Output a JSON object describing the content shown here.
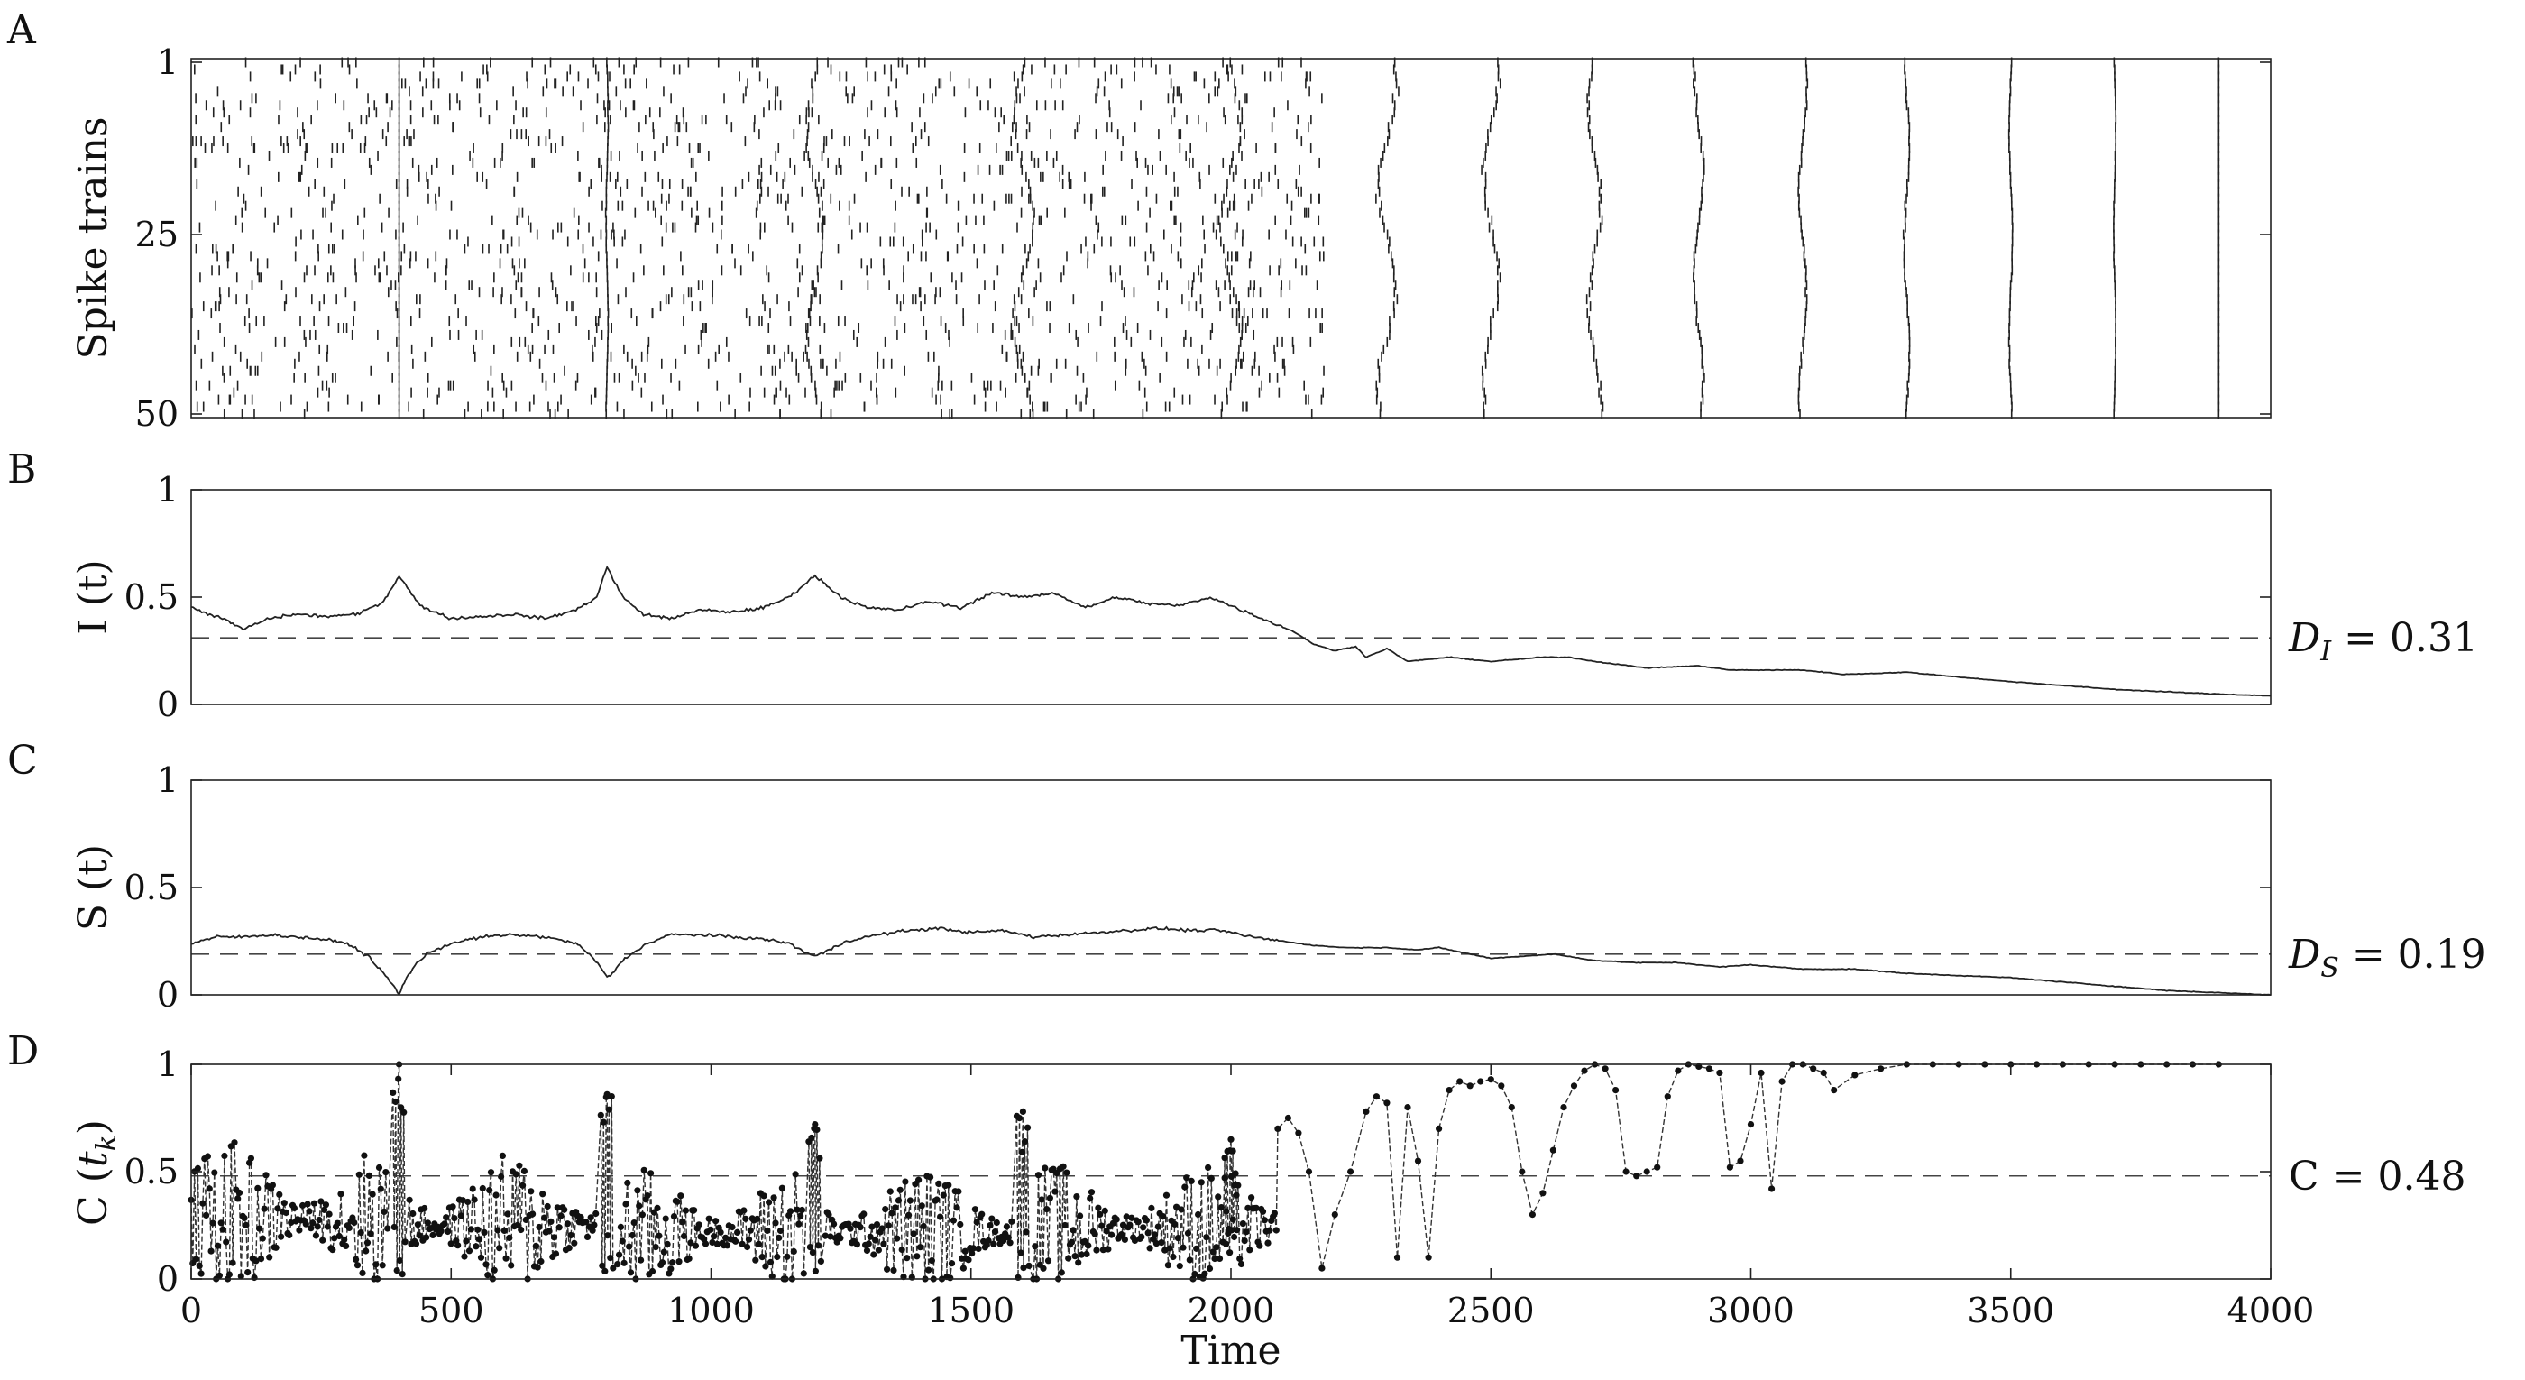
{
  "chart_data": [
    {
      "panel": "A",
      "type": "raster",
      "ylabel": "Spike trains",
      "xlim": [
        0,
        4000
      ],
      "ylim": [
        1,
        50
      ],
      "yticks": [
        "1",
        "25",
        "50"
      ],
      "n_trains": 50,
      "sync_events": [
        {
          "t": 400,
          "jitter": 0
        },
        {
          "t": 800,
          "jitter": 3
        },
        {
          "t": 1200,
          "jitter": 22
        },
        {
          "t": 1600,
          "jitter": 30
        },
        {
          "t": 2000,
          "jitter": 32
        },
        {
          "t": 2300,
          "jitter": 26
        },
        {
          "t": 2500,
          "jitter": 22
        },
        {
          "t": 2700,
          "jitter": 18
        },
        {
          "t": 2900,
          "jitter": 14
        },
        {
          "t": 3100,
          "jitter": 11
        },
        {
          "t": 3300,
          "jitter": 8
        },
        {
          "t": 3500,
          "jitter": 5
        },
        {
          "t": 3700,
          "jitter": 3
        },
        {
          "t": 3900,
          "jitter": 0
        }
      ],
      "random_spike_range": [
        0,
        2180
      ]
    },
    {
      "panel": "B",
      "type": "line",
      "ylabel": "I (t)",
      "ylim": [
        0,
        1
      ],
      "yticks": [
        "0",
        "0.5",
        "1"
      ],
      "dashed_level": 0.31,
      "dashed_label_main": "D",
      "dashed_label_sub": "I",
      "dashed_label_value": " = 0.31",
      "x": [
        0,
        60,
        100,
        150,
        200,
        260,
        320,
        370,
        400,
        440,
        500,
        560,
        620,
        680,
        740,
        780,
        800,
        830,
        870,
        920,
        980,
        1040,
        1100,
        1150,
        1200,
        1250,
        1300,
        1360,
        1420,
        1480,
        1540,
        1600,
        1660,
        1720,
        1780,
        1840,
        1900,
        1960,
        2020,
        2080,
        2120,
        2160,
        2200,
        2240,
        2260,
        2300,
        2340,
        2420,
        2500,
        2600,
        2650,
        2700,
        2800,
        2900,
        2960,
        3100,
        3180,
        3300,
        3480,
        3700,
        3880,
        4000
      ],
      "y": [
        0.45,
        0.4,
        0.35,
        0.4,
        0.42,
        0.41,
        0.42,
        0.48,
        0.6,
        0.46,
        0.4,
        0.41,
        0.42,
        0.4,
        0.44,
        0.5,
        0.64,
        0.5,
        0.42,
        0.4,
        0.44,
        0.43,
        0.45,
        0.5,
        0.6,
        0.5,
        0.45,
        0.44,
        0.48,
        0.45,
        0.52,
        0.5,
        0.52,
        0.45,
        0.5,
        0.47,
        0.46,
        0.5,
        0.44,
        0.38,
        0.34,
        0.28,
        0.25,
        0.27,
        0.22,
        0.26,
        0.2,
        0.22,
        0.2,
        0.22,
        0.22,
        0.2,
        0.17,
        0.18,
        0.16,
        0.16,
        0.14,
        0.15,
        0.11,
        0.07,
        0.05,
        0.04
      ]
    },
    {
      "panel": "C",
      "type": "line",
      "ylabel": "S (t)",
      "ylim": [
        0,
        1
      ],
      "yticks": [
        "0",
        "0.5",
        "1"
      ],
      "dashed_level": 0.19,
      "dashed_label_main": "D",
      "dashed_label_sub": "S",
      "dashed_label_value": " = 0.19",
      "x": [
        0,
        50,
        100,
        150,
        200,
        250,
        300,
        340,
        370,
        390,
        400,
        410,
        430,
        460,
        500,
        560,
        620,
        680,
        740,
        770,
        790,
        800,
        810,
        830,
        870,
        920,
        980,
        1040,
        1100,
        1150,
        1180,
        1200,
        1220,
        1260,
        1320,
        1380,
        1440,
        1500,
        1560,
        1620,
        1680,
        1740,
        1800,
        1860,
        1920,
        1980,
        2040,
        2100,
        2160,
        2220,
        2300,
        2360,
        2400,
        2440,
        2500,
        2560,
        2620,
        2700,
        2780,
        2860,
        2940,
        3000,
        3100,
        3200,
        3300,
        3400,
        3500,
        3600,
        3700,
        3800,
        3900,
        4000
      ],
      "y": [
        0.24,
        0.27,
        0.27,
        0.28,
        0.27,
        0.26,
        0.24,
        0.18,
        0.1,
        0.04,
        0.0,
        0.06,
        0.14,
        0.2,
        0.24,
        0.27,
        0.28,
        0.27,
        0.24,
        0.18,
        0.12,
        0.08,
        0.1,
        0.16,
        0.23,
        0.28,
        0.28,
        0.27,
        0.26,
        0.24,
        0.2,
        0.18,
        0.2,
        0.25,
        0.28,
        0.3,
        0.31,
        0.29,
        0.3,
        0.27,
        0.28,
        0.29,
        0.3,
        0.31,
        0.3,
        0.3,
        0.27,
        0.25,
        0.23,
        0.22,
        0.22,
        0.21,
        0.22,
        0.2,
        0.17,
        0.18,
        0.19,
        0.16,
        0.15,
        0.15,
        0.13,
        0.14,
        0.12,
        0.12,
        0.1,
        0.09,
        0.08,
        0.06,
        0.04,
        0.02,
        0.01,
        0.0
      ]
    },
    {
      "panel": "D",
      "type": "scatter-line",
      "ylabel_main": "C (",
      "ylabel_var": "t",
      "ylabel_sub": "k",
      "ylabel_close": ")",
      "xlabel": "Time",
      "xlim": [
        0,
        4000
      ],
      "ylim": [
        0,
        1
      ],
      "xticks": [
        "0",
        "500",
        "1000",
        "1500",
        "2000",
        "2500",
        "3000",
        "3500",
        "4000"
      ],
      "yticks": [
        "0",
        "0.5",
        "1"
      ],
      "dashed_level": 0.48,
      "dashed_label": "C = 0.48",
      "noisy_segments": [
        {
          "start": 0,
          "end": 380,
          "center": 0.28,
          "amp": 0.36
        },
        {
          "start": 420,
          "end": 780,
          "center": 0.25,
          "amp": 0.34
        },
        {
          "start": 820,
          "end": 1180,
          "center": 0.22,
          "amp": 0.3
        },
        {
          "start": 1220,
          "end": 1580,
          "center": 0.22,
          "amp": 0.3
        },
        {
          "start": 1620,
          "end": 2090,
          "center": 0.24,
          "amp": 0.3
        }
      ],
      "spike_peaks": [
        {
          "t": 400,
          "y": 1.0
        },
        {
          "t": 800,
          "y": 0.86
        },
        {
          "t": 1200,
          "y": 0.72
        },
        {
          "t": 1600,
          "y": 0.78
        },
        {
          "t": 2000,
          "y": 0.65
        }
      ],
      "late_x": [
        2090,
        2110,
        2130,
        2150,
        2175,
        2200,
        2230,
        2260,
        2280,
        2300,
        2320,
        2340,
        2360,
        2380,
        2400,
        2420,
        2440,
        2460,
        2480,
        2500,
        2520,
        2540,
        2560,
        2580,
        2600,
        2620,
        2640,
        2660,
        2680,
        2700,
        2720,
        2740,
        2760,
        2780,
        2800,
        2820,
        2840,
        2860,
        2880,
        2900,
        2920,
        2940,
        2960,
        2980,
        3000,
        3020,
        3040,
        3060,
        3080,
        3100,
        3120,
        3140,
        3160,
        3200,
        3250,
        3300,
        3350,
        3400,
        3450,
        3500,
        3550,
        3600,
        3650,
        3700,
        3750,
        3800,
        3850,
        3900
      ],
      "late_y": [
        0.7,
        0.75,
        0.68,
        0.5,
        0.05,
        0.3,
        0.5,
        0.78,
        0.85,
        0.82,
        0.1,
        0.8,
        0.55,
        0.1,
        0.7,
        0.88,
        0.92,
        0.9,
        0.92,
        0.93,
        0.9,
        0.8,
        0.5,
        0.3,
        0.4,
        0.6,
        0.8,
        0.9,
        0.97,
        1.0,
        0.98,
        0.88,
        0.5,
        0.48,
        0.5,
        0.52,
        0.85,
        0.97,
        1.0,
        0.99,
        0.98,
        0.96,
        0.52,
        0.55,
        0.72,
        0.96,
        0.42,
        0.92,
        1.0,
        1.0,
        0.98,
        0.96,
        0.88,
        0.95,
        0.98,
        1.0,
        1.0,
        1.0,
        1.0,
        1.0,
        1.0,
        1.0,
        1.0,
        1.0,
        1.0,
        1.0,
        1.0,
        1.0
      ]
    }
  ]
}
